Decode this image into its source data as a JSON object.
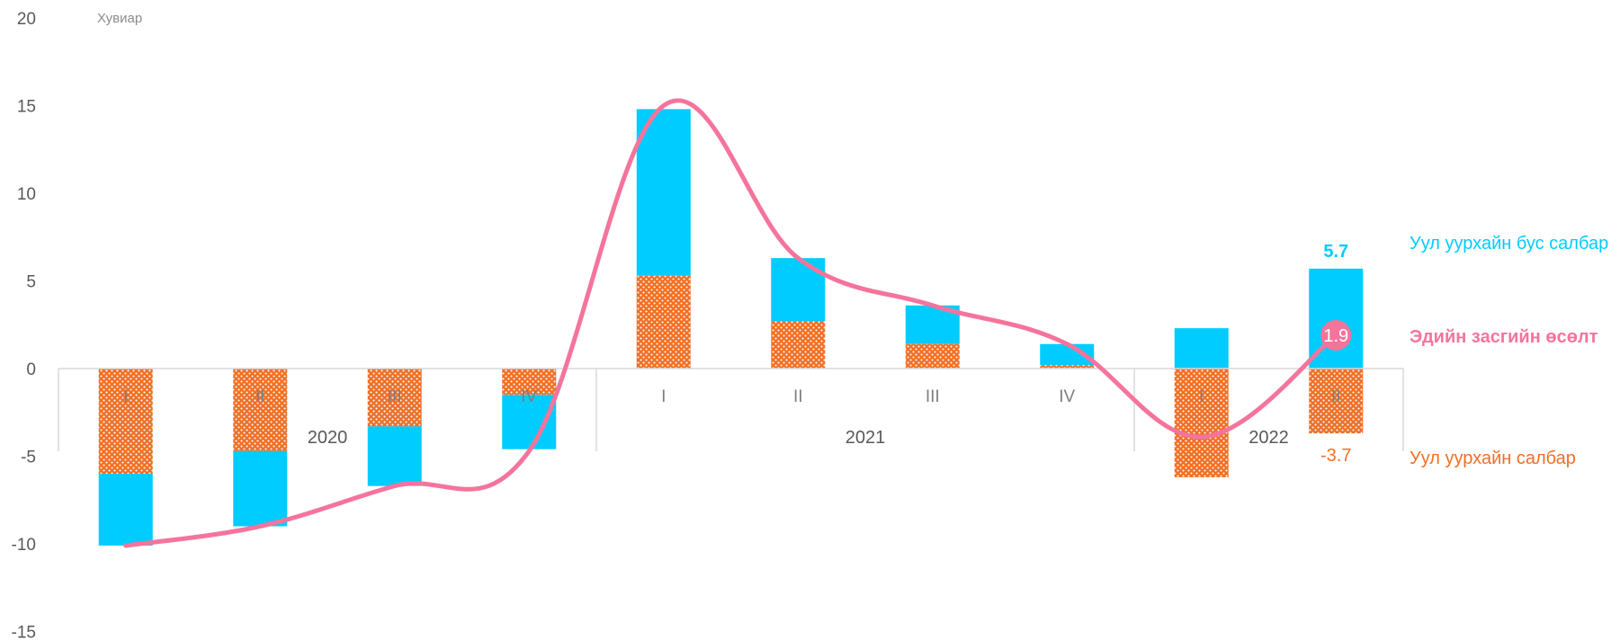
{
  "chart_data": {
    "type": "bar",
    "stacked": true,
    "unit_label": "Хувиар",
    "ylim": [
      -15,
      20
    ],
    "yticks": [
      -15,
      -10,
      -5,
      0,
      5,
      10,
      15,
      20
    ],
    "categories": [
      "I",
      "II",
      "III",
      "IV",
      "I",
      "II",
      "III",
      "IV",
      "I",
      "II"
    ],
    "groups": [
      {
        "label": "2020",
        "count": 4
      },
      {
        "label": "2021",
        "count": 4
      },
      {
        "label": "2022",
        "count": 2
      }
    ],
    "series": [
      {
        "name": "Уул уурхайн салбар",
        "type": "bar",
        "pattern": "dotted",
        "color": "#F07025",
        "values": [
          -6.0,
          -4.7,
          -3.3,
          -1.5,
          5.3,
          2.7,
          1.4,
          0.2,
          -6.2,
          -3.7
        ]
      },
      {
        "name": "Уул уурхайн бус салбар",
        "type": "bar",
        "color": "#00CCFF",
        "values": [
          -4.1,
          -4.3,
          -3.4,
          -3.1,
          9.5,
          3.6,
          2.2,
          1.2,
          2.3,
          5.7
        ]
      },
      {
        "name": "Эдийн засгийн өсөлт",
        "type": "line",
        "smooth": true,
        "color": "#F4749C",
        "values": [
          -10.1,
          -9.0,
          -6.7,
          -4.7,
          15.0,
          6.3,
          3.6,
          1.4,
          -3.9,
          1.9
        ]
      }
    ],
    "data_labels": [
      {
        "series": "Уул уурхайн бус салбар",
        "index": 9,
        "text": "5.7",
        "color": "#00CCFF",
        "bold": true
      },
      {
        "series": "Эдийн засгийн өсөлт",
        "index": 9,
        "text": "1.9",
        "color": "#ffffff",
        "badge_color": "#F4749C"
      },
      {
        "series": "Уул уурхайн салбар",
        "index": 9,
        "text": "-3.7",
        "color": "#F07025"
      }
    ],
    "legend": {
      "placement": "right",
      "items": [
        {
          "text": "Уул уурхайн бус салбар",
          "color": "#00CCFF",
          "bold": false
        },
        {
          "text": "Эдийн засгийн өсөлт",
          "color": "#F4749C",
          "bold": true
        },
        {
          "text": "Уул уурхайн салбар",
          "color": "#F07025",
          "bold": false
        }
      ]
    },
    "grid": false
  }
}
